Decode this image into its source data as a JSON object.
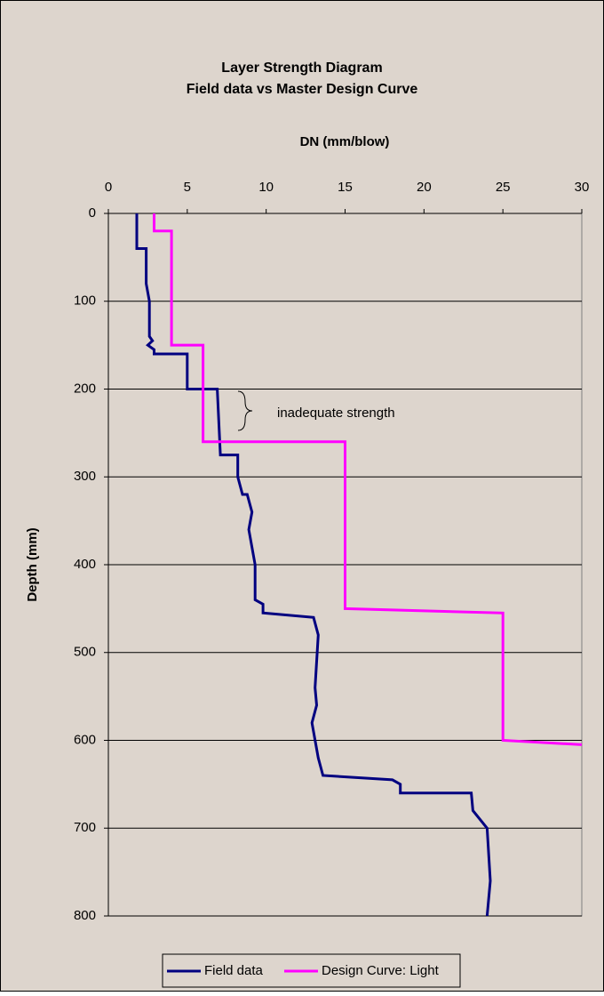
{
  "chart_data": {
    "type": "line",
    "title": [
      "Layer Strength Diagram",
      "Field data vs Master Design Curve"
    ],
    "x_label": "DN (mm/blow)",
    "y_label": "Depth (mm)",
    "xlim": [
      0,
      30
    ],
    "xticks": [
      0,
      5,
      10,
      15,
      20,
      25,
      30
    ],
    "ylim": [
      0,
      800
    ],
    "yticks": [
      0,
      100,
      200,
      300,
      400,
      500,
      600,
      700,
      800
    ],
    "y_inverted": true,
    "x_axis_position": "top",
    "grid": true,
    "legend": "bottom",
    "annotations": [
      "inadequate strength"
    ],
    "series": [
      {
        "name": "Field data",
        "color": "#000080",
        "x": [
          1.8,
          1.8,
          2.4,
          2.4,
          2.6,
          2.6,
          2.8,
          2.5,
          2.9,
          2.9,
          5,
          5,
          6.9,
          7.1,
          8.2,
          8.2,
          8.5,
          8.8,
          9.1,
          8.9,
          9.3,
          9.3,
          9.8,
          9.8,
          13,
          13.3,
          13.1,
          13.2,
          12.9,
          13.3,
          13.6,
          18,
          18.5,
          18.5,
          23,
          23.1,
          24,
          24.2,
          24
        ],
        "y": [
          0,
          40,
          40,
          80,
          100,
          140,
          145,
          150,
          155,
          160,
          160,
          200,
          200,
          275,
          275,
          300,
          320,
          320,
          340,
          360,
          400,
          440,
          445,
          455,
          460,
          480,
          540,
          560,
          580,
          620,
          640,
          645,
          650,
          660,
          660,
          680,
          700,
          760,
          800
        ]
      },
      {
        "name": "Design Curve: Light",
        "color": "#ff00ff",
        "x": [
          2.9,
          2.9,
          4,
          4,
          6,
          6,
          15,
          15,
          25,
          25,
          30
        ],
        "y": [
          0,
          20,
          20,
          150,
          150,
          260,
          260,
          450,
          455,
          600,
          605
        ]
      }
    ]
  }
}
